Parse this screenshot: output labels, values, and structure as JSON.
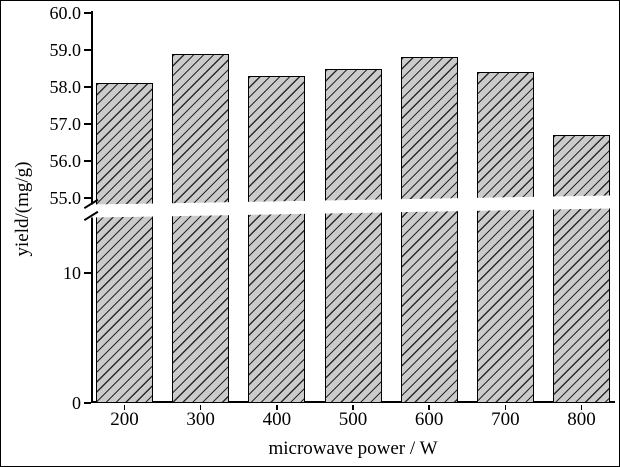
{
  "chart_data": {
    "type": "bar",
    "title": "",
    "categories": [
      "200",
      "300",
      "400",
      "500",
      "600",
      "700",
      "800"
    ],
    "values": [
      58.1,
      58.9,
      58.3,
      58.5,
      58.8,
      58.4,
      56.7
    ],
    "xlabel": "microwave power / W",
    "ylabel": "yield/(mg/g)",
    "y_axis": {
      "broken": true,
      "upper_range": [
        55.0,
        60.0
      ],
      "upper_ticks": [
        "55.0",
        "56.0",
        "57.0",
        "58.0",
        "59.0",
        "60.0"
      ],
      "lower_ticks": [
        "0",
        "10"
      ]
    },
    "legend": "none",
    "grid": false,
    "bar_fill": "#cbcbcb",
    "bar_hatch": "diagonal-forward-slash",
    "hatch_color": "#000000",
    "axis_color": "#000000",
    "background": "#ffffff"
  }
}
